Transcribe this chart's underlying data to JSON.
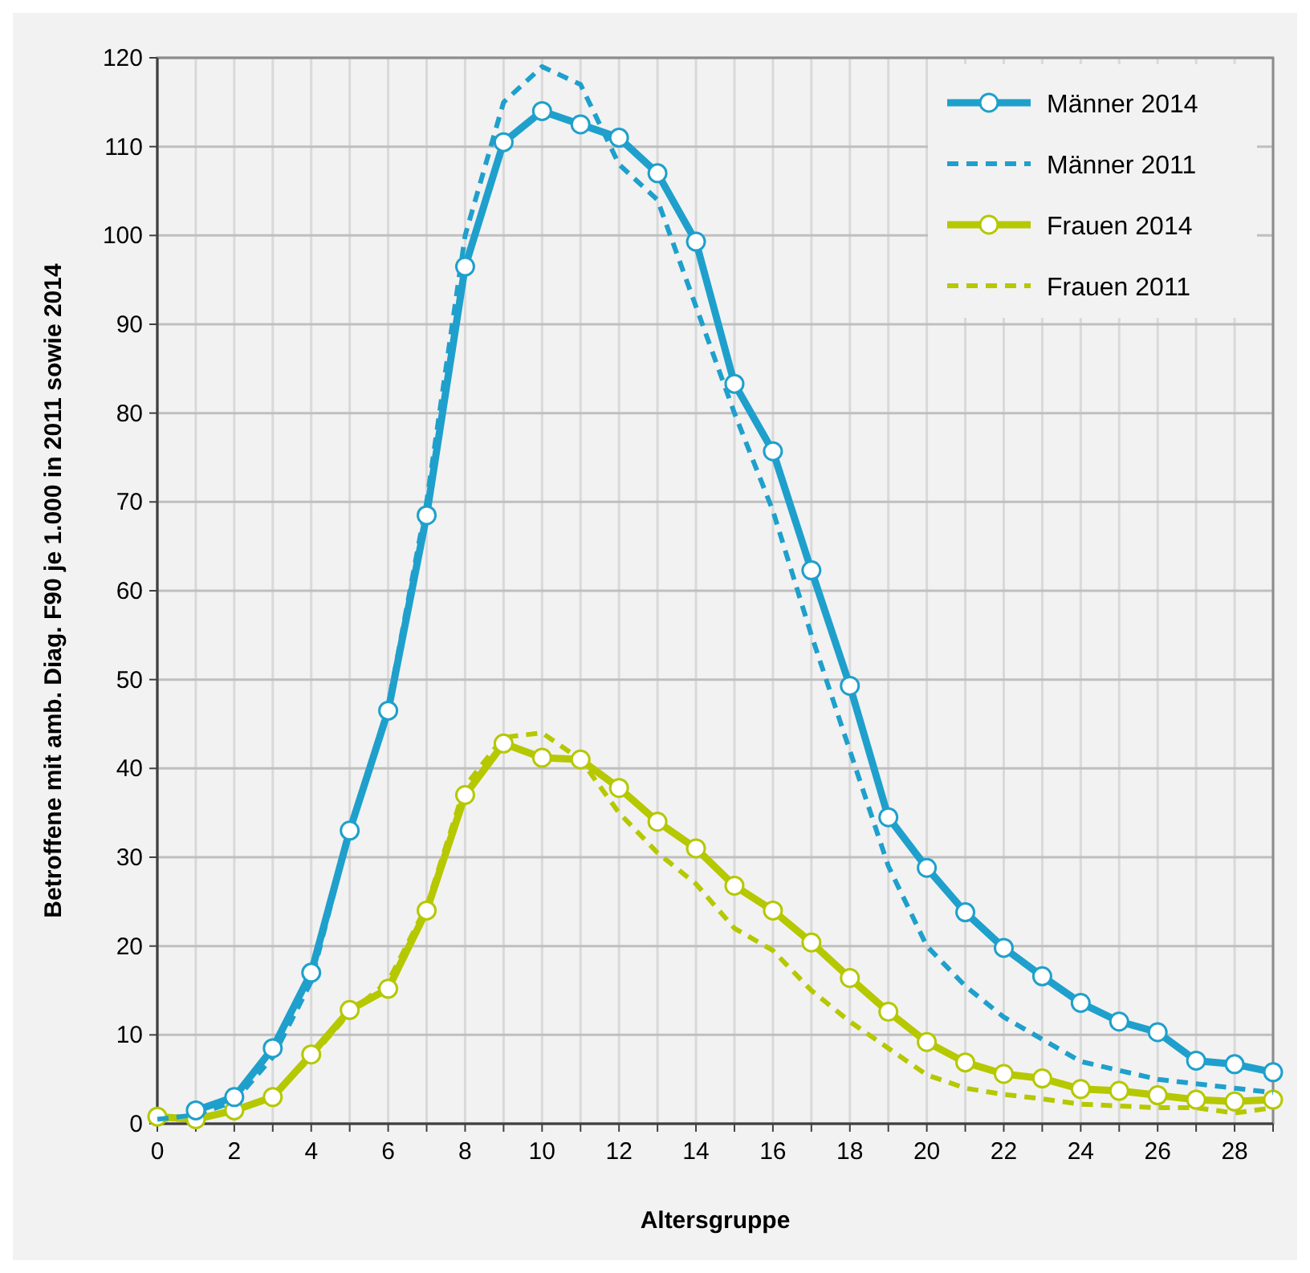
{
  "chart_data": {
    "type": "line",
    "xlabel": "Altersgruppe",
    "ylabel": "Betroffene mit amb. Diag. F90 je 1.000 in 2011 sowie 2014",
    "x": [
      0,
      1,
      2,
      3,
      4,
      5,
      6,
      7,
      8,
      9,
      10,
      11,
      12,
      13,
      14,
      15,
      16,
      17,
      18,
      19,
      20,
      21,
      22,
      23,
      24,
      25,
      26,
      27,
      28,
      29
    ],
    "xlim": [
      0,
      29
    ],
    "ylim": [
      0,
      120
    ],
    "xticks": [
      0,
      {
        "value": 1,
        "label": null
      },
      2,
      {
        "value": 3,
        "label": null
      },
      4,
      {
        "value": 5,
        "label": null
      },
      6,
      {
        "value": 7,
        "label": null
      },
      8,
      {
        "value": 9,
        "label": null
      },
      10,
      {
        "value": 11,
        "label": null
      },
      12,
      {
        "value": 13,
        "label": null
      },
      14,
      {
        "value": 15,
        "label": null
      },
      16,
      {
        "value": 17,
        "label": null
      },
      18,
      {
        "value": 19,
        "label": null
      },
      20,
      {
        "value": 21,
        "label": null
      },
      22,
      {
        "value": 23,
        "label": null
      },
      24,
      {
        "value": 25,
        "label": null
      },
      26,
      {
        "value": 27,
        "label": null
      },
      28,
      {
        "value": 29,
        "label": null
      }
    ],
    "yticks": [
      0,
      10,
      20,
      30,
      40,
      50,
      60,
      70,
      80,
      90,
      100,
      110,
      120
    ],
    "grid": true,
    "legend": "top right",
    "series": [
      {
        "name": "Männer 2014",
        "color": "#1fa0cc",
        "marker": "circle",
        "line_style": "solid",
        "values": [
          null,
          1.5,
          3,
          8.5,
          17,
          33,
          46.5,
          68.5,
          96.5,
          110.5,
          114,
          112.5,
          111,
          107,
          99.3,
          83.3,
          75.7,
          62.3,
          49.3,
          34.5,
          28.8,
          23.8,
          19.8,
          16.6,
          13.6,
          11.5,
          10.3,
          7.1,
          6.7,
          5.8
        ]
      },
      {
        "name": "Männer 2011",
        "color": "#1fa0cc",
        "marker": "none",
        "line_style": "dashed",
        "values": [
          0.5,
          1,
          2.5,
          7.5,
          16,
          33,
          47,
          70,
          100,
          115,
          119,
          117,
          108,
          104,
          92,
          80,
          69,
          55,
          42,
          29,
          20,
          15.5,
          12,
          9.5,
          7,
          6,
          5,
          4.5,
          4,
          3.5
        ]
      },
      {
        "name": "Frauen 2014",
        "color": "#b5c800",
        "marker": "circle",
        "line_style": "solid",
        "values": [
          0.8,
          0.5,
          1.5,
          3,
          7.8,
          12.8,
          15.2,
          24,
          37,
          42.8,
          41.2,
          41,
          37.8,
          34,
          31,
          26.8,
          24,
          20.4,
          16.4,
          12.6,
          9.2,
          6.9,
          5.6,
          5.1,
          3.9,
          3.7,
          3.2,
          2.7,
          2.5,
          2.7
        ]
      },
      {
        "name": "Frauen 2011",
        "color": "#b5c800",
        "marker": "none",
        "line_style": "dashed",
        "values": [
          0.5,
          0.5,
          1.5,
          3,
          7.5,
          12.5,
          16,
          24.5,
          38,
          43.5,
          44,
          41,
          35,
          30.5,
          27,
          22,
          19.5,
          15,
          11.5,
          8.5,
          5.5,
          4,
          3.3,
          2.8,
          2.2,
          2,
          1.8,
          1.8,
          1.2,
          1.8
        ]
      }
    ]
  }
}
